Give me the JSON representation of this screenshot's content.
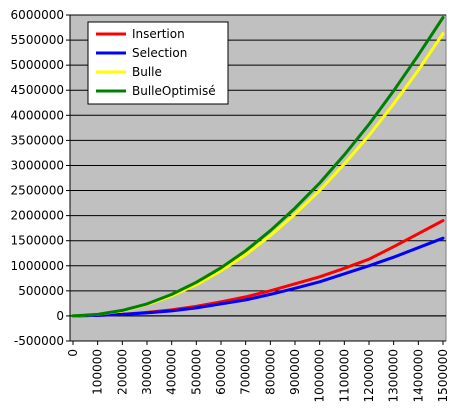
{
  "chart_data": {
    "type": "line",
    "title": "",
    "xlabel": "",
    "ylabel": "",
    "x": [
      0,
      100000,
      200000,
      300000,
      400000,
      500000,
      600000,
      700000,
      800000,
      900000,
      1000000,
      1100000,
      1200000,
      1300000,
      1400000,
      1500000
    ],
    "x_tick_labels": [
      "0",
      "100000",
      "200000",
      "300000",
      "400000",
      "500000",
      "600000",
      "700000",
      "800000",
      "900000",
      "1000000",
      "1100000",
      "1200000",
      "1300000",
      "1400000",
      "1500000"
    ],
    "ylim": [
      -500000,
      6000000
    ],
    "y_ticks": [
      -500000,
      0,
      500000,
      1000000,
      1500000,
      2000000,
      2500000,
      3000000,
      3500000,
      4000000,
      4500000,
      5000000,
      5500000,
      6000000
    ],
    "y_tick_labels": [
      "-500000",
      "0",
      "500000",
      "1000000",
      "1500000",
      "2000000",
      "2500000",
      "3000000",
      "3500000",
      "4000000",
      "4500000",
      "5000000",
      "5500000",
      "6000000"
    ],
    "grid": true,
    "legend_position": "top-left",
    "plot_background": "#c0c0c0",
    "series": [
      {
        "name": "Insertion",
        "color": "#ff0000",
        "values": [
          0,
          10000,
          30000,
          70000,
          120000,
          190000,
          280000,
          380000,
          500000,
          640000,
          780000,
          950000,
          1130000,
          1380000,
          1640000,
          1900000
        ]
      },
      {
        "name": "Selection",
        "color": "#0000ff",
        "values": [
          0,
          10000,
          30000,
          60000,
          100000,
          160000,
          240000,
          320000,
          430000,
          550000,
          680000,
          840000,
          1000000,
          1170000,
          1360000,
          1550000
        ]
      },
      {
        "name": "Bulle",
        "color": "#ffff00",
        "values": [
          0,
          30000,
          100000,
          230000,
          400000,
          620000,
          900000,
          1220000,
          1600000,
          2030000,
          2500000,
          3030000,
          3600000,
          4230000,
          4900000,
          5630000
        ]
      },
      {
        "name": "BulleOptimisé",
        "color": "#008000",
        "values": [
          0,
          30000,
          110000,
          240000,
          430000,
          670000,
          960000,
          1300000,
          1700000,
          2150000,
          2650000,
          3210000,
          3820000,
          4490000,
          5200000,
          5950000
        ]
      }
    ]
  }
}
